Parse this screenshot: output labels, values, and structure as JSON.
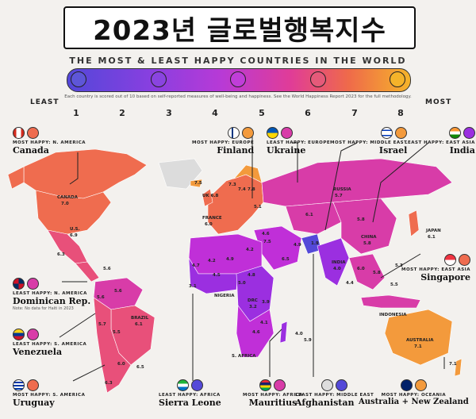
{
  "title": "2023년 글로벌행복지수",
  "subtitle": "THE MOST & LEAST HAPPY COUNTRIES IN THE WORLD",
  "scale": {
    "note": "Each country is scored out of 10 based on self-reported measures of well-being and happiness. See the World Happiness Report 2023 for the full methodology.",
    "least_label": "LEAST",
    "most_label": "MOST",
    "ticks": [
      "1",
      "2",
      "3",
      "4",
      "5",
      "6",
      "7",
      "8"
    ]
  },
  "callouts": {
    "canada": {
      "category": "MOST HAPPY: N. AMERICA",
      "country": "Canada"
    },
    "finland": {
      "category": "MOST HAPPY: EUROPE",
      "country": "Finland"
    },
    "ukraine": {
      "category": "LEAST HAPPY: EUROPE",
      "country": "Ukraine"
    },
    "israel": {
      "category": "MOST HAPPY: MIDDLE EAST",
      "country": "Israel"
    },
    "india": {
      "category": "LEAST HAPPY: EAST ASIA",
      "country": "India"
    },
    "dominican": {
      "category": "LEAST HAPPY: N. AMERICA",
      "country": "Dominican Rep.",
      "note": "Note: No data for Haiti in 2023"
    },
    "singapore": {
      "category": "MOST HAPPY: EAST ASIA",
      "country": "Singapore"
    },
    "venezuela": {
      "category": "LEAST HAPPY: S. AMERICA",
      "country": "Venezuela"
    },
    "uruguay": {
      "category": "MOST HAPPY: S. AMERICA",
      "country": "Uruguay"
    },
    "sierra": {
      "category": "LEAST HAPPY: AFRICA",
      "country": "Sierra Leone"
    },
    "mauritius": {
      "category": "MOST HAPPY: AFRICA",
      "country": "Mauritius"
    },
    "afghanistan": {
      "category": "LEAST HAPPY: MIDDLE EAST",
      "country": "Afghanistan"
    },
    "australia": {
      "category": "MOST HAPPY: OCEANIA",
      "country": "Australia + New Zealand"
    }
  },
  "map_labels": {
    "canada": "CANADA",
    "canada_val": "7.0",
    "us": "U.S.",
    "us_val": "6.9",
    "mexico_val": "6.3",
    "uk": "UK 6.8",
    "france": "FRANCE",
    "france_val": "6.0",
    "russia": "RUSSIA",
    "russia_val": "5.7",
    "china": "CHINA",
    "china_val": "5.8",
    "japan": "JAPAN",
    "japan_val": "6.1",
    "india": "INDIA",
    "india_val": "4.0",
    "indonesia": "INDONESIA",
    "nigeria": "NIGERIA",
    "drc": "DRC",
    "drc_val": "3.2",
    "safrica": "S. AFRICA",
    "brazil": "BRAZIL",
    "brazil_val": "6.1",
    "australia": "AUSTRALIA",
    "australia_val": "7.1",
    "nz_val": "7.1",
    "iceland_val": "7.5",
    "kaz_val": "6.1",
    "mong_val": "5.8",
    "afg_val": "1.9",
    "iran_val": "4.9",
    "saudi_val": "6.5",
    "egypt_val": "4.2",
    "madag_val": "4.0",
    "maur_val": "5.9",
    "viet_val": "5.8",
    "sk_val": "5.3",
    "thai_val": "6.0",
    "phil_val": "5.5",
    "myan_val": "4.4",
    "ven_val": "5.6",
    "col_val": "5.6",
    "peru_val": "5.7",
    "bol_val": "5.5",
    "arg_val": "6.0",
    "chile_val": "6.3",
    "uru_val": "6.5",
    "cuba_val": "5.6",
    "nor_val": "7.3",
    "fin_val": "7.8",
    "sw_val": "7.4",
    "ukr_val": "5.1",
    "tur_val": "4.6",
    "isr_val": "7.5",
    "west1": "4.7",
    "west2": "4.2",
    "west3": "4.5",
    "west4": "3.1",
    "west5": "4.9",
    "east1": "4.8",
    "east2": "5.0",
    "east3": "3.9",
    "east4": "4.1",
    "east5": "4.6"
  },
  "colors": {
    "very_low": "#5449d8",
    "low": "#9b2fe0",
    "mid_low": "#c02fd8",
    "mid": "#d83ca8",
    "mid_high": "#e8507a",
    "high": "#ef6c4f",
    "very_high": "#f39a3c",
    "no_data": "#dcdcdc",
    "ocean": "#f3f1ee"
  }
}
